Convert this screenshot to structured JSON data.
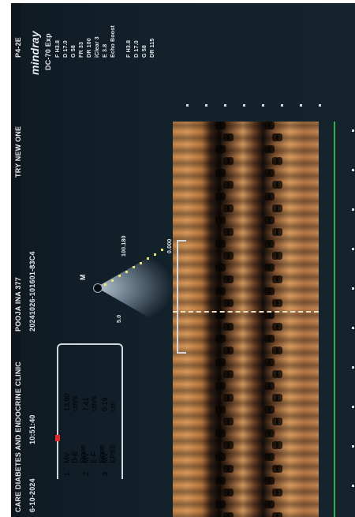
{
  "header": {
    "clinic": "CARE DIABETES AND ENDOCRINE CLINIC",
    "date": "6-10-2024",
    "time": "10:51:40",
    "patient_name": "POOJA INA 377",
    "exam_id": "20241026-101601-83C4",
    "message": "TRY NEW ONE",
    "probe_code": "P4-2E",
    "brand": "mindray",
    "preset": "DC-70 Exp"
  },
  "params": {
    "left": [
      "F H3.8",
      "D 17.0",
      "G 58",
      "FR 33",
      "DR 100",
      "iClear 3",
      "E 3.8",
      "Echo Boost"
    ],
    "right": [
      "F H3.8",
      "D 17.0",
      "G 58",
      "DR 115"
    ]
  },
  "measurements": {
    "items": [
      {
        "index": "1",
        "label": "MV D-E Slope",
        "value": "13.90 cm/s"
      },
      {
        "index": "2",
        "label": "MV E-F Slope",
        "value": "7.41 cm/s"
      },
      {
        "index": "3",
        "label": "MV EPSS",
        "value": "0.19 cm"
      }
    ]
  },
  "mmode": {
    "scale_label_a": "100.180",
    "scale_label_b": "0.000",
    "marker": "M",
    "depth_label": "5.0"
  },
  "colors": {
    "accent_red": "#e3262b",
    "green_line": "#2fae4a",
    "screen_bg": "#13212b"
  },
  "icons": [
    "probe-icon",
    "cursor-icon",
    "arrow-down-icon"
  ]
}
